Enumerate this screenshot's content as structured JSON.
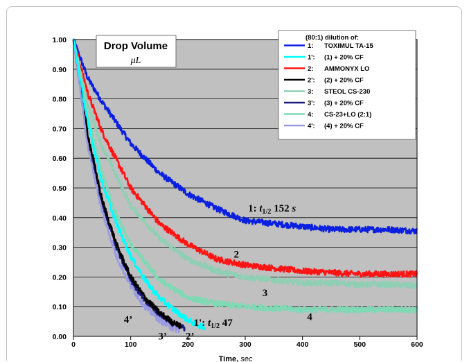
{
  "chart_data": {
    "type": "line",
    "title": "Drop Volume",
    "subtitle": "μL",
    "xlabel": "Time,",
    "xlabel_unit": "sec",
    "ylabel": "",
    "xlim": [
      0,
      600
    ],
    "ylim": [
      0,
      1.0
    ],
    "x_ticks": [
      "0",
      "100",
      "200",
      "300",
      "400",
      "500",
      "600"
    ],
    "y_ticks": [
      "0.00",
      "0.10",
      "0.20",
      "0.30",
      "0.40",
      "0.50",
      "0.60",
      "0.70",
      "0.80",
      "0.90",
      "1.00"
    ],
    "grid": true,
    "legend_position": "top-right",
    "legend_title": "(80:1) dilution of:",
    "series": [
      {
        "key": "1:",
        "name": "TOXIMUL TA-15",
        "color": "#0a1fe0",
        "x": [
          0,
          25,
          50,
          100,
          150,
          200,
          250,
          300,
          350,
          400,
          450,
          500,
          550,
          600
        ],
        "y": [
          1.0,
          0.87,
          0.79,
          0.65,
          0.55,
          0.48,
          0.43,
          0.39,
          0.38,
          0.37,
          0.36,
          0.36,
          0.36,
          0.355
        ]
      },
      {
        "key": "1':",
        "name": "(1) + 20% CF",
        "color": "#00ffff",
        "x": [
          0,
          25,
          50,
          75,
          100,
          125,
          150,
          175,
          200,
          215,
          230
        ],
        "y": [
          1.0,
          0.72,
          0.52,
          0.38,
          0.27,
          0.19,
          0.13,
          0.09,
          0.055,
          0.04,
          0.03
        ]
      },
      {
        "key": "2:",
        "name": "AMMONYX LO",
        "color": "#ff1414",
        "x": [
          0,
          25,
          50,
          100,
          150,
          200,
          250,
          300,
          350,
          400,
          450,
          500,
          550,
          600
        ],
        "y": [
          1.0,
          0.82,
          0.69,
          0.5,
          0.38,
          0.31,
          0.26,
          0.24,
          0.23,
          0.22,
          0.215,
          0.21,
          0.21,
          0.21
        ]
      },
      {
        "key": "2':",
        "name": "(2) + 20% CF",
        "color": "#000000",
        "x": [
          0,
          25,
          50,
          75,
          100,
          125,
          150,
          175,
          190
        ],
        "y": [
          1.0,
          0.68,
          0.46,
          0.31,
          0.2,
          0.13,
          0.08,
          0.045,
          0.03
        ]
      },
      {
        "key": "3:",
        "name": "STEOL CS-230",
        "color": "#8fcfb4",
        "x": [
          0,
          25,
          50,
          100,
          150,
          200,
          250,
          300,
          350,
          400,
          450,
          500,
          550,
          600
        ],
        "y": [
          1.0,
          0.78,
          0.64,
          0.44,
          0.33,
          0.26,
          0.22,
          0.2,
          0.19,
          0.18,
          0.18,
          0.175,
          0.175,
          0.17
        ]
      },
      {
        "key": "3':",
        "name": "(3) + 20% CF",
        "color": "#1a1a80",
        "x": [
          0,
          25,
          50,
          75,
          100,
          125,
          150,
          175,
          195
        ],
        "y": [
          1.0,
          0.67,
          0.45,
          0.3,
          0.19,
          0.12,
          0.07,
          0.04,
          0.025
        ]
      },
      {
        "key": "4:",
        "name": "CS-23+LO (2:1)",
        "color": "#7fd9b5",
        "x": [
          0,
          25,
          50,
          75,
          100,
          150,
          200,
          250,
          300,
          350,
          400,
          450,
          500,
          550,
          600
        ],
        "y": [
          1.0,
          0.74,
          0.55,
          0.41,
          0.31,
          0.19,
          0.13,
          0.11,
          0.1,
          0.095,
          0.09,
          0.09,
          0.09,
          0.09,
          0.09
        ]
      },
      {
        "key": "4':",
        "name": "(4) + 20% CF",
        "color": "#9a9ae0",
        "x": [
          0,
          25,
          50,
          75,
          100,
          125,
          150,
          170,
          185
        ],
        "y": [
          1.0,
          0.64,
          0.42,
          0.27,
          0.17,
          0.1,
          0.055,
          0.03,
          0.02
        ]
      }
    ],
    "annotations": [
      {
        "text_parts": [
          "1:  ",
          "t",
          "1/2",
          " 152 ",
          "s"
        ],
        "x": 305,
        "y": 0.42
      },
      {
        "text": "2",
        "x": 280,
        "y": 0.265
      },
      {
        "text": "3",
        "x": 330,
        "y": 0.135
      },
      {
        "text": "4",
        "x": 408,
        "y": 0.055
      },
      {
        "text_parts": [
          "1':  ",
          "t",
          "1/2",
          " 47"
        ],
        "x": 210,
        "y": 0.035
      },
      {
        "text": "4’",
        "x": 88,
        "y": 0.045
      },
      {
        "text": "3’",
        "x": 148,
        "y": -0.01
      },
      {
        "text": "2’",
        "x": 196,
        "y": -0.01
      }
    ]
  }
}
